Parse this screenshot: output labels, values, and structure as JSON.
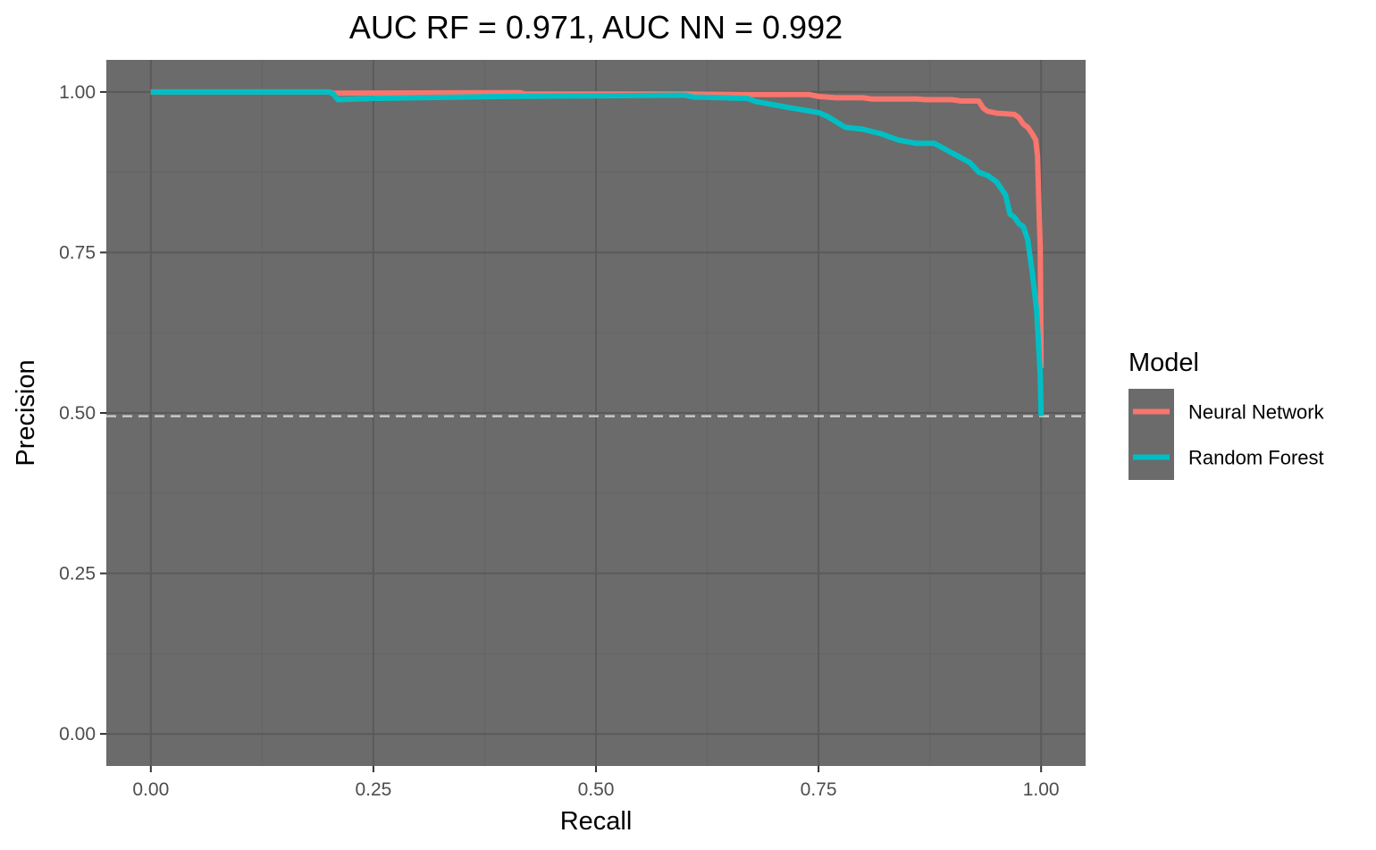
{
  "chart_data": {
    "type": "line",
    "title": "AUC RF = 0.971, AUC NN = 0.992",
    "xlabel": "Recall",
    "ylabel": "Precision",
    "xlim": [
      -0.05,
      1.05
    ],
    "ylim": [
      -0.05,
      1.05
    ],
    "x_ticks": [
      0.0,
      0.25,
      0.5,
      0.75,
      1.0
    ],
    "x_tick_labels": [
      "0.00",
      "0.25",
      "0.50",
      "0.75",
      "1.00"
    ],
    "y_ticks": [
      0.0,
      0.25,
      0.5,
      0.75,
      1.0
    ],
    "y_tick_labels": [
      "0.00",
      "0.25",
      "0.50",
      "0.75",
      "1.00"
    ],
    "grid": true,
    "baseline": {
      "y": 0.495,
      "style": "dashed",
      "color": "#c8c8c8"
    },
    "legend": {
      "title": "Model",
      "placement": "right"
    },
    "colors": {
      "panel": "#6b6b6b",
      "grid_major": "#5a5a5a",
      "grid_minor": "#646464"
    },
    "series": [
      {
        "name": "Neural Network",
        "color": "#F8766D",
        "x": [
          0.0,
          0.2,
          0.205,
          0.415,
          0.42,
          0.6,
          0.67,
          0.74,
          0.75,
          0.77,
          0.8,
          0.81,
          0.86,
          0.87,
          0.9,
          0.91,
          0.93,
          0.935,
          0.94,
          0.95,
          0.96,
          0.97,
          0.975,
          0.98,
          0.985,
          0.99,
          0.994,
          0.996,
          0.997,
          0.998,
          0.999,
          1.0
        ],
        "y": [
          1.0,
          1.0,
          0.998,
          0.999,
          0.997,
          0.997,
          0.996,
          0.996,
          0.993,
          0.991,
          0.991,
          0.989,
          0.989,
          0.988,
          0.988,
          0.986,
          0.986,
          0.975,
          0.97,
          0.967,
          0.966,
          0.965,
          0.96,
          0.95,
          0.945,
          0.935,
          0.925,
          0.9,
          0.85,
          0.8,
          0.76,
          0.57
        ]
      },
      {
        "name": "Random Forest",
        "color": "#00BFC4",
        "x": [
          0.0,
          0.2,
          0.205,
          0.21,
          0.25,
          0.4,
          0.5,
          0.6,
          0.61,
          0.62,
          0.67,
          0.68,
          0.7,
          0.72,
          0.75,
          0.76,
          0.78,
          0.8,
          0.82,
          0.84,
          0.86,
          0.88,
          0.9,
          0.92,
          0.93,
          0.94,
          0.95,
          0.96,
          0.965,
          0.97,
          0.975,
          0.98,
          0.985,
          0.99,
          0.995,
          0.997,
          0.999,
          1.0
        ],
        "y": [
          1.0,
          1.0,
          0.997,
          0.988,
          0.99,
          0.993,
          0.994,
          0.995,
          0.992,
          0.992,
          0.99,
          0.985,
          0.98,
          0.975,
          0.968,
          0.962,
          0.945,
          0.942,
          0.935,
          0.925,
          0.92,
          0.92,
          0.905,
          0.89,
          0.875,
          0.87,
          0.86,
          0.84,
          0.81,
          0.805,
          0.795,
          0.79,
          0.77,
          0.72,
          0.66,
          0.61,
          0.56,
          0.495
        ]
      }
    ]
  }
}
